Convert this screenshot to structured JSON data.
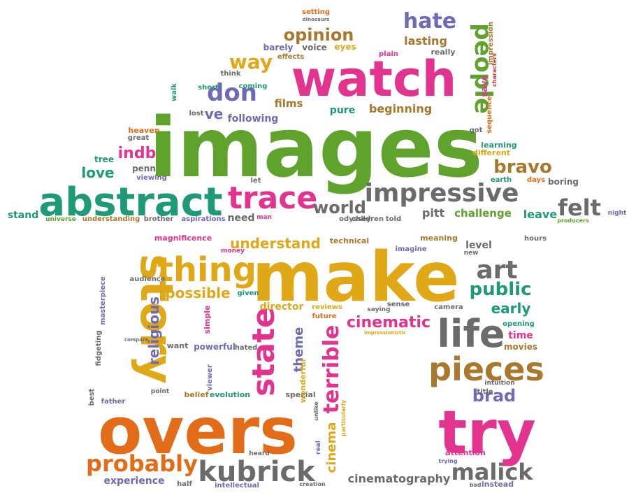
{
  "palette": {
    "green": "#5fa22c",
    "magenta": "#e2348f",
    "teal": "#1f9a78",
    "orange": "#e26c17",
    "gold": "#e0a816",
    "purple": "#6e6bb5",
    "gray": "#6b6b6b",
    "brown": "#a8782c",
    "red": "#d93b2b"
  },
  "words": [
    {
      "text": "images",
      "color": "green"
    },
    {
      "text": "watch",
      "color": "magenta"
    },
    {
      "text": "abstract",
      "color": "teal"
    },
    {
      "text": "trace",
      "color": "magenta"
    },
    {
      "text": "impressive",
      "color": "gray"
    },
    {
      "text": "make",
      "color": "gold"
    },
    {
      "text": "overs",
      "color": "orange"
    },
    {
      "text": "try",
      "color": "magenta"
    },
    {
      "text": "story",
      "color": "gold"
    },
    {
      "text": "thing",
      "color": "gold"
    },
    {
      "text": "life",
      "color": "gray"
    },
    {
      "text": "pieces",
      "color": "brown"
    },
    {
      "text": "art",
      "color": "gray"
    },
    {
      "text": "kubrick",
      "color": "gray"
    },
    {
      "text": "malick",
      "color": "gray"
    },
    {
      "text": "probably",
      "color": "orange"
    },
    {
      "text": "state",
      "color": "magenta"
    },
    {
      "text": "terrible",
      "color": "magenta"
    },
    {
      "text": "cinematic",
      "color": "magenta"
    },
    {
      "text": "public",
      "color": "teal"
    },
    {
      "text": "people",
      "color": "green"
    },
    {
      "text": "hate",
      "color": "purple"
    },
    {
      "text": "don",
      "color": "purple"
    },
    {
      "text": "way",
      "color": "gold"
    },
    {
      "text": "opinion",
      "color": "brown"
    },
    {
      "text": "felt",
      "color": "gray"
    },
    {
      "text": "bravo",
      "color": "brown"
    },
    {
      "text": "world",
      "color": "gray"
    },
    {
      "text": "indb",
      "color": "magenta"
    },
    {
      "text": "love",
      "color": "teal"
    },
    {
      "text": "ve",
      "color": "purple"
    },
    {
      "text": "brad",
      "color": "purple"
    },
    {
      "text": "religious",
      "color": "purple"
    },
    {
      "text": "possible",
      "color": "gold"
    },
    {
      "text": "understand",
      "color": "gold"
    },
    {
      "text": "theme",
      "color": "purple"
    },
    {
      "text": "cinema",
      "color": "gold"
    },
    {
      "text": "early",
      "color": "teal"
    },
    {
      "text": "director",
      "color": "gold"
    },
    {
      "text": "cinematography",
      "color": "gray"
    },
    {
      "text": "experience",
      "color": "purple"
    },
    {
      "text": "beginning",
      "color": "brown"
    },
    {
      "text": "lasting",
      "color": "brown"
    },
    {
      "text": "films",
      "color": "brown"
    },
    {
      "text": "pure",
      "color": "teal"
    },
    {
      "text": "following",
      "color": "purple"
    },
    {
      "text": "penn",
      "color": "gray"
    },
    {
      "text": "tree",
      "color": "teal"
    },
    {
      "text": "heaven",
      "color": "orange"
    },
    {
      "text": "great",
      "color": "gray"
    },
    {
      "text": "coming",
      "color": "teal"
    },
    {
      "text": "short",
      "color": "teal"
    },
    {
      "text": "walk",
      "color": "teal"
    },
    {
      "text": "lost",
      "color": "gray"
    },
    {
      "text": "think",
      "color": "gray"
    },
    {
      "text": "barely",
      "color": "purple"
    },
    {
      "text": "voice",
      "color": "gray"
    },
    {
      "text": "eyes",
      "color": "gold"
    },
    {
      "text": "effects",
      "color": "brown"
    },
    {
      "text": "setting",
      "color": "orange"
    },
    {
      "text": "dinosaurs",
      "color": "gray"
    },
    {
      "text": "plain",
      "color": "magenta"
    },
    {
      "text": "really",
      "color": "gray"
    },
    {
      "text": "impression",
      "color": "brown"
    },
    {
      "text": "characters",
      "color": "red"
    },
    {
      "text": "save",
      "color": "magenta"
    },
    {
      "text": "sequence",
      "color": "orange"
    },
    {
      "text": "got",
      "color": "gray"
    },
    {
      "text": "learning",
      "color": "teal"
    },
    {
      "text": "different",
      "color": "gold"
    },
    {
      "text": "earth",
      "color": "teal"
    },
    {
      "text": "days",
      "color": "orange"
    },
    {
      "text": "boring",
      "color": "gray"
    },
    {
      "text": "leave",
      "color": "teal"
    },
    {
      "text": "challenge",
      "color": "green"
    },
    {
      "text": "pitt",
      "color": "gray"
    },
    {
      "text": "told",
      "color": "gray"
    },
    {
      "text": "odyssey",
      "color": "gray"
    },
    {
      "text": "children",
      "color": "gray"
    },
    {
      "text": "need",
      "color": "gray"
    },
    {
      "text": "man",
      "color": "magenta"
    },
    {
      "text": "stand",
      "color": "teal"
    },
    {
      "text": "universe",
      "color": "green"
    },
    {
      "text": "understanding",
      "color": "brown"
    },
    {
      "text": "brother",
      "color": "gray"
    },
    {
      "text": "aspirations",
      "color": "purple"
    },
    {
      "text": "night",
      "color": "purple"
    },
    {
      "text": "producers",
      "color": "green"
    },
    {
      "text": "viewing",
      "color": "purple"
    },
    {
      "text": "let",
      "color": "gray"
    },
    {
      "text": "magnificence",
      "color": "magenta"
    },
    {
      "text": "money",
      "color": "magenta"
    },
    {
      "text": "technical",
      "color": "brown"
    },
    {
      "text": "meaning",
      "color": "brown"
    },
    {
      "text": "imagine",
      "color": "purple"
    },
    {
      "text": "level",
      "color": "gray"
    },
    {
      "text": "hours",
      "color": "gray"
    },
    {
      "text": "new",
      "color": "gray"
    },
    {
      "text": "audience",
      "color": "gray"
    },
    {
      "text": "given",
      "color": "teal"
    },
    {
      "text": "reviews",
      "color": "gold"
    },
    {
      "text": "future",
      "color": "orange"
    },
    {
      "text": "sense",
      "color": "gray"
    },
    {
      "text": "camera",
      "color": "gray"
    },
    {
      "text": "saying",
      "color": "gray"
    },
    {
      "text": "opening",
      "color": "teal"
    },
    {
      "text": "time",
      "color": "magenta"
    },
    {
      "text": "movies",
      "color": "brown"
    },
    {
      "text": "masterpiece",
      "color": "purple"
    },
    {
      "text": "fidgeting",
      "color": "gray"
    },
    {
      "text": "simple",
      "color": "magenta"
    },
    {
      "text": "want",
      "color": "gray"
    },
    {
      "text": "powerful",
      "color": "purple"
    },
    {
      "text": "hated",
      "color": "gray"
    },
    {
      "text": "viewer",
      "color": "purple"
    },
    {
      "text": "evolution",
      "color": "teal"
    },
    {
      "text": "belief",
      "color": "brown"
    },
    {
      "text": "special",
      "color": "gray"
    },
    {
      "text": "wonderful",
      "color": "gold"
    },
    {
      "text": "unlike",
      "color": "gray"
    },
    {
      "text": "particularly",
      "color": "gold"
    },
    {
      "text": "intuition",
      "color": "gray"
    },
    {
      "text": "title",
      "color": "gray"
    },
    {
      "text": "father",
      "color": "purple"
    },
    {
      "text": "best",
      "color": "gray"
    },
    {
      "text": "point",
      "color": "gray"
    },
    {
      "text": "compare",
      "color": "gray"
    },
    {
      "text": "heard",
      "color": "gray"
    },
    {
      "text": "half",
      "color": "gray"
    },
    {
      "text": "intellectual",
      "color": "purple"
    },
    {
      "text": "creation",
      "color": "gray"
    },
    {
      "text": "attention",
      "color": "magenta"
    },
    {
      "text": "trying",
      "color": "purple"
    },
    {
      "text": "instead",
      "color": "purple"
    },
    {
      "text": "bad",
      "color": "gray"
    },
    {
      "text": "real",
      "color": "purple"
    },
    {
      "text": "impressionistic",
      "color": "gold"
    }
  ]
}
